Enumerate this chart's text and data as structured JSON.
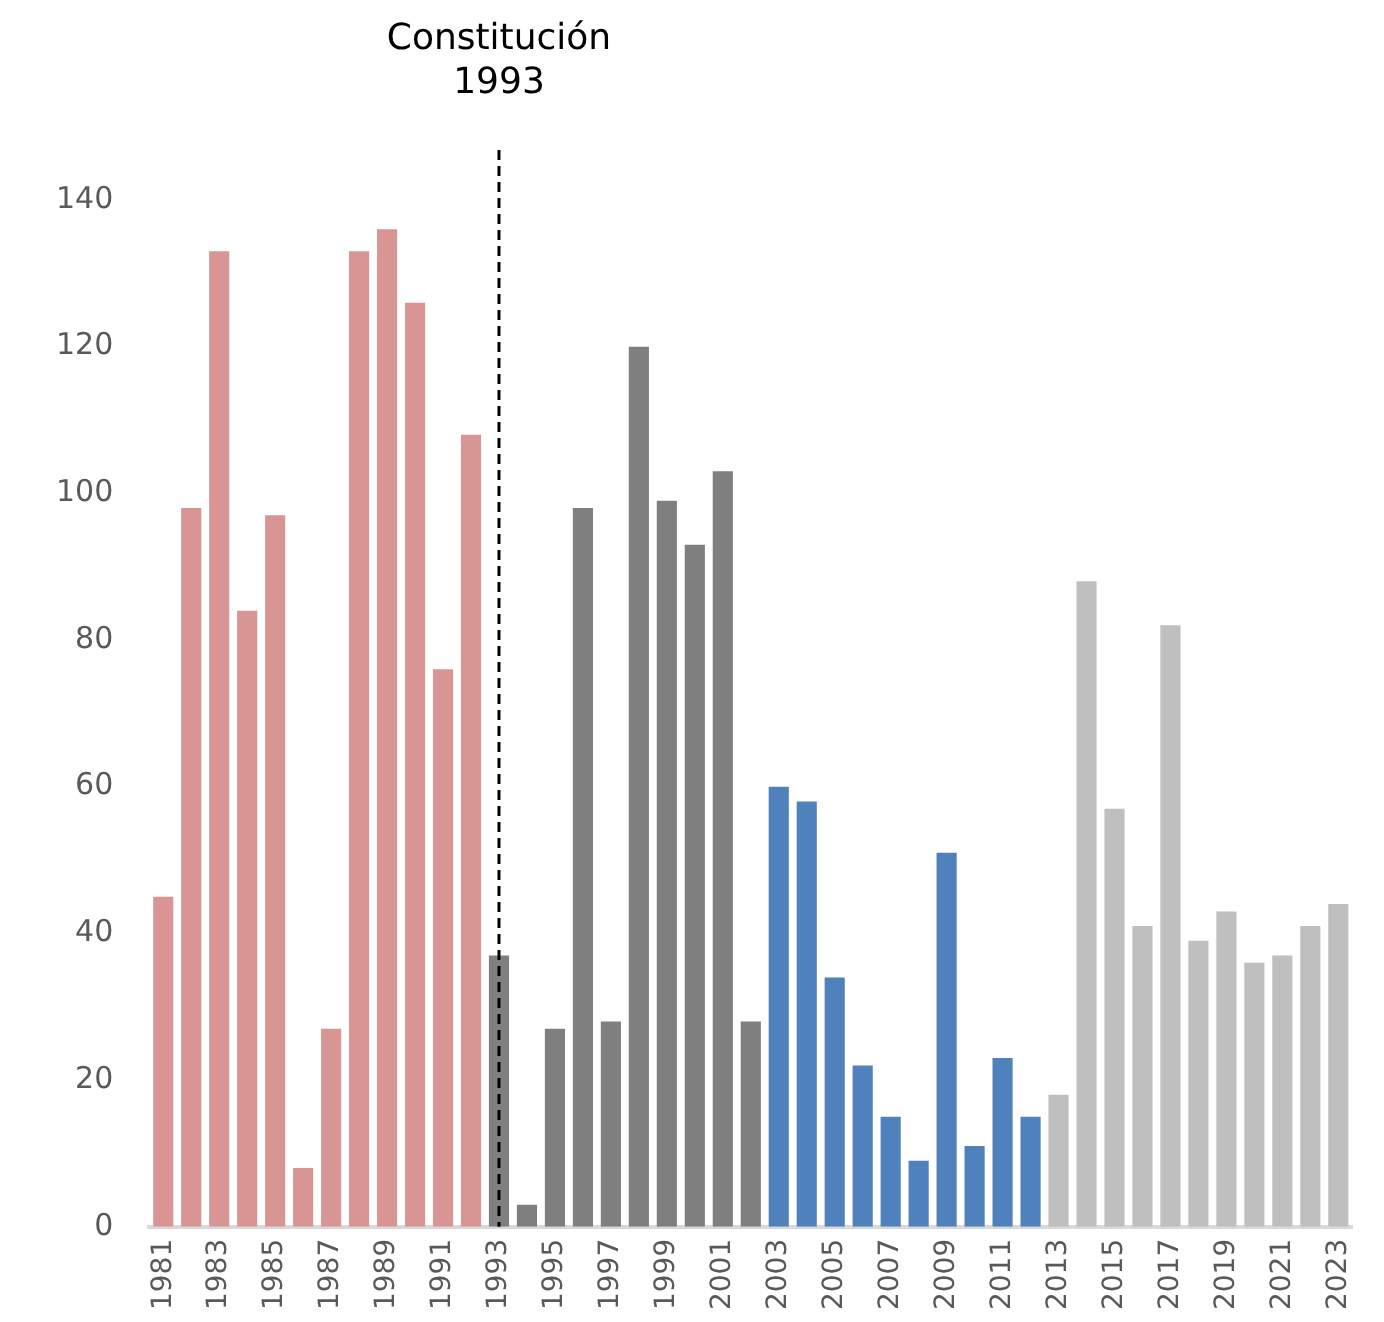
{
  "chart_data": {
    "type": "bar",
    "categories": [
      "1981",
      null,
      "1983",
      null,
      "1985",
      null,
      "1987",
      null,
      "1989",
      null,
      "1991",
      null,
      "1993",
      null,
      "1995",
      null,
      "1997",
      null,
      "1999",
      null,
      "2001",
      null,
      "2003",
      null,
      "2005",
      null,
      "2007",
      null,
      "2009",
      null,
      "2011",
      null,
      "2013",
      null,
      "2015",
      null,
      "2017",
      null,
      "2019",
      null,
      "2021",
      null,
      "2023"
    ],
    "values": [
      45,
      98,
      133,
      84,
      97,
      8,
      27,
      133,
      136,
      126,
      76,
      108,
      37,
      3,
      27,
      98,
      28,
      120,
      99,
      93,
      103,
      28,
      60,
      58,
      34,
      22,
      15,
      9,
      51,
      11,
      23,
      15,
      18,
      88,
      57,
      41,
      82,
      39,
      43,
      36,
      37,
      41,
      44
    ],
    "colors": [
      "#d99594",
      "#d99594",
      "#d99594",
      "#d99594",
      "#d99594",
      "#d99594",
      "#d99594",
      "#d99594",
      "#d99594",
      "#d99594",
      "#d99594",
      "#d99594",
      "#7f7f7f",
      "#7f7f7f",
      "#7f7f7f",
      "#7f7f7f",
      "#7f7f7f",
      "#7f7f7f",
      "#7f7f7f",
      "#7f7f7f",
      "#7f7f7f",
      "#7f7f7f",
      "#4f81bd",
      "#4f81bd",
      "#4f81bd",
      "#4f81bd",
      "#4f81bd",
      "#4f81bd",
      "#4f81bd",
      "#4f81bd",
      "#4f81bd",
      "#4f81bd",
      "#bfbfbf",
      "#bfbfbf",
      "#bfbfbf",
      "#bfbfbf",
      "#bfbfbf",
      "#bfbfbf",
      "#bfbfbf",
      "#bfbfbf",
      "#bfbfbf",
      "#bfbfbf",
      "#bfbfbf"
    ],
    "ylim": [
      0,
      140
    ],
    "yticks": [
      0,
      20,
      40,
      60,
      80,
      100,
      120,
      140
    ],
    "grid": false,
    "legend": false,
    "ref_lines": [
      {
        "axis": "x",
        "value": "1993",
        "label": "Constitución\n1993",
        "color": "#000000",
        "line_style": "dashed"
      }
    ]
  }
}
